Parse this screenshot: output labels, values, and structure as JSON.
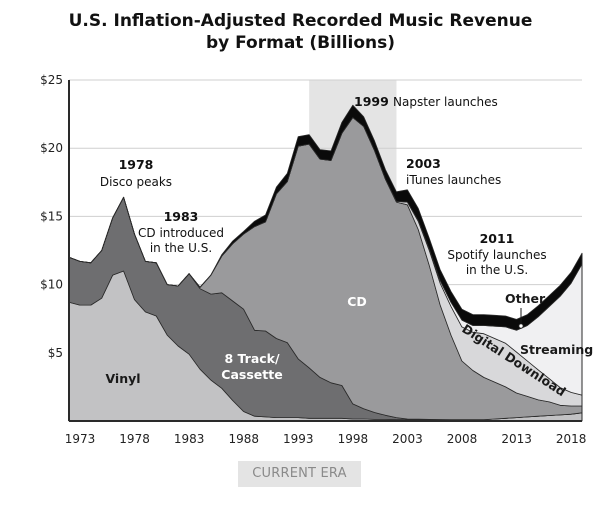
{
  "chart_data": {
    "type": "area",
    "stacked": true,
    "title": "U.S. Inflation-Adjusted Recorded Music Revenue by Format (Billions)",
    "xlabel": "",
    "ylabel": "",
    "xlim": [
      1973,
      2020
    ],
    "ylim": [
      0,
      25
    ],
    "grid": true,
    "y_ticks": [
      {
        "value": 5,
        "label": "$5"
      },
      {
        "value": 10,
        "label": "$10"
      },
      {
        "value": 15,
        "label": "$15"
      },
      {
        "value": 20,
        "label": "$20"
      },
      {
        "value": 25,
        "label": "$25"
      }
    ],
    "x_ticks": [
      {
        "value": 1973,
        "label": "1973"
      },
      {
        "value": 1978,
        "label": "1978"
      },
      {
        "value": 1983,
        "label": "1983"
      },
      {
        "value": 1988,
        "label": "1988"
      },
      {
        "value": 1993,
        "label": "1993"
      },
      {
        "value": 1998,
        "label": "1998"
      },
      {
        "value": 2003,
        "label": "2003"
      },
      {
        "value": 2008,
        "label": "2008"
      },
      {
        "value": 2013,
        "label": "2013"
      },
      {
        "value": 2018,
        "label": "2018"
      }
    ],
    "x": [
      1973,
      1974,
      1975,
      1976,
      1977,
      1978,
      1979,
      1980,
      1981,
      1982,
      1983,
      1984,
      1985,
      1986,
      1987,
      1988,
      1989,
      1990,
      1991,
      1992,
      1993,
      1994,
      1995,
      1996,
      1997,
      1998,
      1999,
      2000,
      2001,
      2002,
      2003,
      2004,
      2005,
      2006,
      2007,
      2008,
      2009,
      2010,
      2011,
      2012,
      2013,
      2014,
      2015,
      2016,
      2017,
      2018,
      2019,
      2020
    ],
    "series": [
      {
        "name": "Vinyl",
        "color": "#c2c2c4",
        "values": [
          8.7,
          8.5,
          8.5,
          9.0,
          10.7,
          11.0,
          8.9,
          8.0,
          7.7,
          6.3,
          5.5,
          4.9,
          3.8,
          3.0,
          2.4,
          1.5,
          0.7,
          0.35,
          0.3,
          0.25,
          0.25,
          0.25,
          0.2,
          0.2,
          0.2,
          0.2,
          0.15,
          0.15,
          0.12,
          0.12,
          0.1,
          0.1,
          0.1,
          0.1,
          0.1,
          0.1,
          0.1,
          0.1,
          0.1,
          0.15,
          0.2,
          0.25,
          0.3,
          0.35,
          0.4,
          0.45,
          0.5,
          0.6
        ]
      },
      {
        "name": "8 Track/ Cassette",
        "color": "#6e6e70",
        "values": [
          3.3,
          3.2,
          3.1,
          3.5,
          4.2,
          5.4,
          4.8,
          3.7,
          3.9,
          3.7,
          4.4,
          5.9,
          5.9,
          6.3,
          7.0,
          7.3,
          7.5,
          6.3,
          6.3,
          5.8,
          5.5,
          4.3,
          3.7,
          3.0,
          2.6,
          2.4,
          1.1,
          0.75,
          0.5,
          0.3,
          0.15,
          0.05,
          0.03,
          0.02,
          0.01,
          0.0,
          0.0,
          0.0,
          0.0,
          0.0,
          0.0,
          0.0,
          0.0,
          0.0,
          0.0,
          0.0,
          0.0,
          0.0
        ]
      },
      {
        "name": "CD",
        "color": "#9a9a9c",
        "values": [
          0,
          0,
          0,
          0,
          0,
          0,
          0,
          0,
          0,
          0,
          0,
          0,
          0.1,
          1.4,
          2.7,
          4.2,
          5.5,
          7.6,
          8.0,
          10.6,
          11.8,
          15.6,
          16.4,
          16.0,
          16.3,
          18.5,
          21.0,
          20.7,
          19.2,
          17.3,
          15.8,
          15.7,
          13.9,
          11.3,
          8.4,
          6.2,
          4.3,
          3.6,
          3.1,
          2.7,
          2.3,
          1.8,
          1.5,
          1.2,
          1.0,
          0.7,
          0.6,
          0.5
        ]
      },
      {
        "name": "Digital Download",
        "color": "#d8d8da",
        "values": [
          0,
          0,
          0,
          0,
          0,
          0,
          0,
          0,
          0,
          0,
          0,
          0,
          0,
          0,
          0,
          0,
          0,
          0,
          0,
          0,
          0,
          0,
          0,
          0,
          0,
          0,
          0,
          0,
          0,
          0,
          0.05,
          0.2,
          0.6,
          1.1,
          1.6,
          2.1,
          2.5,
          2.8,
          3.2,
          3.2,
          3.2,
          3.0,
          2.6,
          2.2,
          1.7,
          1.3,
          1.0,
          0.8
        ]
      },
      {
        "name": "Streaming",
        "color": "#f0f0f2",
        "values": [
          0,
          0,
          0,
          0,
          0,
          0,
          0,
          0,
          0,
          0,
          0,
          0,
          0,
          0,
          0,
          0,
          0,
          0,
          0,
          0,
          0,
          0,
          0,
          0,
          0,
          0,
          0,
          0,
          0,
          0,
          0,
          0,
          0.05,
          0.1,
          0.2,
          0.3,
          0.5,
          0.5,
          0.6,
          0.9,
          1.2,
          1.6,
          2.6,
          3.9,
          5.3,
          6.7,
          8.0,
          9.6
        ]
      },
      {
        "name": "Other",
        "color": "#0a0a0a",
        "values": [
          0,
          0,
          0,
          0,
          0,
          0,
          0,
          0,
          0,
          0,
          0,
          0,
          0,
          0,
          0.1,
          0.2,
          0.2,
          0.4,
          0.5,
          0.5,
          0.6,
          0.7,
          0.7,
          0.7,
          0.7,
          0.8,
          0.9,
          0.7,
          0.7,
          0.7,
          0.7,
          0.9,
          0.9,
          0.8,
          0.8,
          0.8,
          0.8,
          0.8,
          0.8,
          0.8,
          0.8,
          0.8,
          0.8,
          0.8,
          0.8,
          0.8,
          0.8,
          0.8
        ]
      }
    ],
    "shaded_region": {
      "from": 1995,
      "to": 2003,
      "label": "CURRENT ERA",
      "color": "#e4e4e4"
    },
    "annotations": [
      {
        "year": "1978",
        "text": "Disco peaks"
      },
      {
        "year": "1983",
        "text_lines": [
          "CD introduced",
          "in the U.S."
        ]
      },
      {
        "year": "1999",
        "text": "Napster launches"
      },
      {
        "year": "2003",
        "text": "iTunes launches"
      },
      {
        "year": "2011",
        "text_lines": [
          "Spotify launches",
          "in the U.S."
        ]
      }
    ],
    "series_labels": {
      "vinyl": "Vinyl",
      "cassette_line1": "8 Track/",
      "cassette_line2": "Cassette",
      "cd": "CD",
      "digital": "Digital Download",
      "streaming": "Streaming",
      "other": "Other"
    },
    "legend": "inline"
  }
}
